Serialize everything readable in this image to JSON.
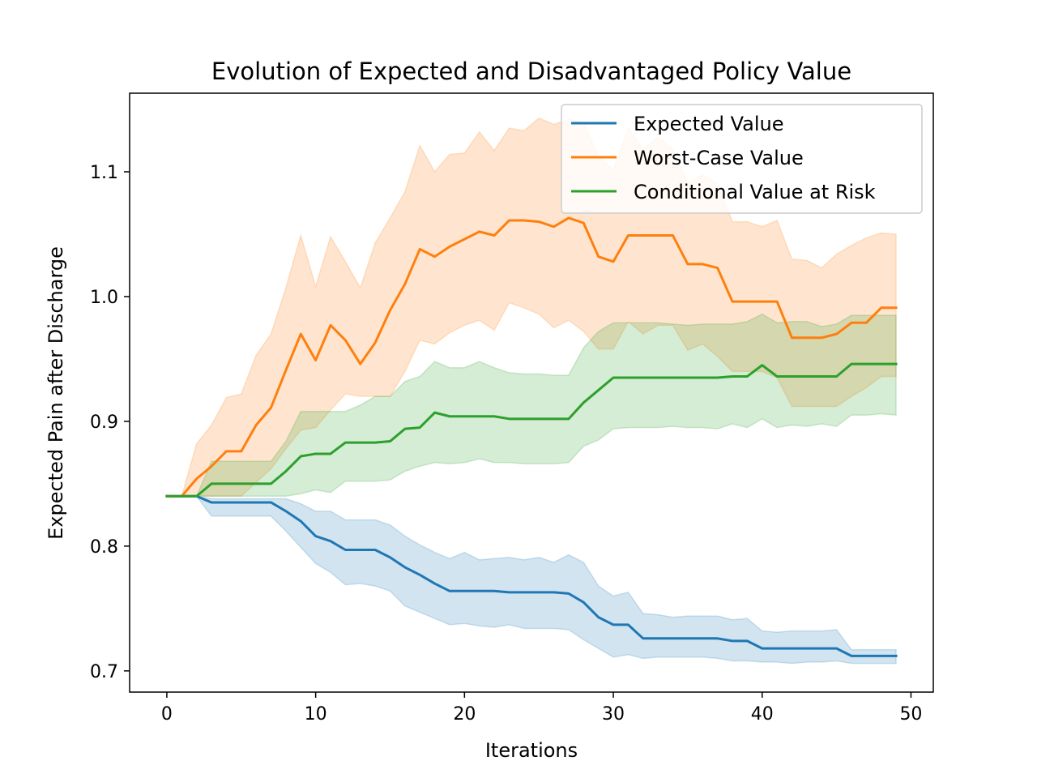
{
  "chart_data": {
    "type": "line",
    "title": "Evolution of Expected and Disadvantaged Policy Value",
    "xlabel": "Iterations",
    "ylabel": "Expected Pain after Discharge",
    "xlim": [
      -2.5,
      51.5
    ],
    "ylim": [
      0.683,
      1.163
    ],
    "xticks": [
      0,
      10,
      20,
      30,
      40,
      50
    ],
    "yticks": [
      0.7,
      0.8,
      0.9,
      1.0,
      1.1
    ],
    "ytick_labels": [
      "0.7",
      "0.8",
      "0.9",
      "1.0",
      "1.1"
    ],
    "grid": false,
    "legend_position": "top-right",
    "x": [
      0,
      1,
      2,
      3,
      4,
      5,
      6,
      7,
      8,
      9,
      10,
      11,
      12,
      13,
      14,
      15,
      16,
      17,
      18,
      19,
      20,
      21,
      22,
      23,
      24,
      25,
      26,
      27,
      28,
      29,
      30,
      31,
      32,
      33,
      34,
      35,
      36,
      37,
      38,
      39,
      40,
      41,
      42,
      43,
      44,
      45,
      46,
      47,
      48,
      49
    ],
    "series": [
      {
        "name": "Expected Value",
        "color": "#1f77b4",
        "fill_color": "#1f77b4",
        "values": [
          0.84,
          0.84,
          0.84,
          0.835,
          0.835,
          0.835,
          0.835,
          0.835,
          0.828,
          0.82,
          0.808,
          0.804,
          0.797,
          0.797,
          0.797,
          0.791,
          0.783,
          0.777,
          0.77,
          0.764,
          0.764,
          0.764,
          0.764,
          0.763,
          0.763,
          0.763,
          0.763,
          0.762,
          0.755,
          0.743,
          0.737,
          0.737,
          0.726,
          0.726,
          0.726,
          0.726,
          0.726,
          0.726,
          0.724,
          0.724,
          0.718,
          0.718,
          0.718,
          0.718,
          0.718,
          0.718,
          0.712,
          0.712,
          0.712,
          0.712
        ],
        "lower": [
          0.84,
          0.84,
          0.84,
          0.824,
          0.824,
          0.824,
          0.824,
          0.824,
          0.812,
          0.799,
          0.786,
          0.779,
          0.769,
          0.77,
          0.768,
          0.764,
          0.752,
          0.747,
          0.742,
          0.737,
          0.738,
          0.736,
          0.735,
          0.737,
          0.734,
          0.734,
          0.734,
          0.733,
          0.725,
          0.718,
          0.711,
          0.713,
          0.71,
          0.711,
          0.711,
          0.711,
          0.711,
          0.71,
          0.708,
          0.708,
          0.707,
          0.707,
          0.706,
          0.707,
          0.707,
          0.708,
          0.706,
          0.706,
          0.706,
          0.706
        ],
        "upper": [
          0.84,
          0.84,
          0.84,
          0.838,
          0.838,
          0.838,
          0.838,
          0.838,
          0.838,
          0.834,
          0.828,
          0.828,
          0.821,
          0.821,
          0.821,
          0.817,
          0.808,
          0.801,
          0.795,
          0.79,
          0.795,
          0.789,
          0.79,
          0.791,
          0.789,
          0.791,
          0.787,
          0.793,
          0.787,
          0.768,
          0.76,
          0.763,
          0.746,
          0.745,
          0.743,
          0.744,
          0.744,
          0.744,
          0.741,
          0.742,
          0.732,
          0.731,
          0.732,
          0.732,
          0.732,
          0.733,
          0.717,
          0.717,
          0.717,
          0.717
        ]
      },
      {
        "name": "Worst-Case Value",
        "color": "#ff7f0e",
        "fill_color": "#ff7f0e",
        "values": [
          0.84,
          0.84,
          0.854,
          0.864,
          0.876,
          0.876,
          0.897,
          0.911,
          0.941,
          0.97,
          0.949,
          0.977,
          0.965,
          0.946,
          0.963,
          0.989,
          1.01,
          1.038,
          1.032,
          1.04,
          1.046,
          1.052,
          1.049,
          1.061,
          1.061,
          1.06,
          1.056,
          1.063,
          1.059,
          1.032,
          1.028,
          1.049,
          1.049,
          1.049,
          1.049,
          1.026,
          1.026,
          1.023,
          0.996,
          0.996,
          0.996,
          0.996,
          0.967,
          0.967,
          0.967,
          0.97,
          0.979,
          0.979,
          0.991,
          0.991
        ],
        "lower": [
          0.84,
          0.84,
          0.84,
          0.84,
          0.84,
          0.84,
          0.851,
          0.862,
          0.878,
          0.893,
          0.895,
          0.909,
          0.922,
          0.92,
          0.92,
          0.92,
          0.94,
          0.965,
          0.962,
          0.971,
          0.977,
          0.981,
          0.973,
          0.995,
          0.991,
          0.986,
          0.975,
          0.981,
          0.972,
          0.958,
          0.958,
          0.98,
          0.97,
          0.977,
          0.977,
          0.957,
          0.962,
          0.952,
          0.94,
          0.94,
          0.94,
          0.935,
          0.912,
          0.912,
          0.912,
          0.912,
          0.92,
          0.927,
          0.936,
          0.936
        ],
        "upper": [
          0.84,
          0.84,
          0.882,
          0.897,
          0.919,
          0.922,
          0.953,
          0.97,
          1.007,
          1.049,
          1.008,
          1.048,
          1.028,
          1.007,
          1.043,
          1.063,
          1.084,
          1.121,
          1.1,
          1.114,
          1.115,
          1.132,
          1.117,
          1.135,
          1.133,
          1.143,
          1.138,
          1.142,
          1.14,
          1.112,
          1.102,
          1.135,
          1.118,
          1.128,
          1.118,
          1.091,
          1.098,
          1.09,
          1.06,
          1.06,
          1.056,
          1.061,
          1.03,
          1.029,
          1.023,
          1.034,
          1.041,
          1.047,
          1.051,
          1.05
        ]
      },
      {
        "name": "Conditional Value at Risk",
        "color": "#2ca02c",
        "fill_color": "#2ca02c",
        "values": [
          0.84,
          0.84,
          0.84,
          0.85,
          0.85,
          0.85,
          0.85,
          0.85,
          0.86,
          0.872,
          0.874,
          0.874,
          0.883,
          0.883,
          0.883,
          0.884,
          0.894,
          0.895,
          0.907,
          0.904,
          0.904,
          0.904,
          0.904,
          0.902,
          0.902,
          0.902,
          0.902,
          0.902,
          0.915,
          0.925,
          0.935,
          0.935,
          0.935,
          0.935,
          0.935,
          0.935,
          0.935,
          0.935,
          0.936,
          0.936,
          0.945,
          0.936,
          0.936,
          0.936,
          0.936,
          0.936,
          0.946,
          0.946,
          0.946,
          0.946
        ],
        "lower": [
          0.84,
          0.84,
          0.84,
          0.84,
          0.84,
          0.84,
          0.84,
          0.84,
          0.84,
          0.842,
          0.845,
          0.843,
          0.852,
          0.852,
          0.852,
          0.853,
          0.86,
          0.864,
          0.867,
          0.866,
          0.867,
          0.87,
          0.867,
          0.867,
          0.866,
          0.866,
          0.866,
          0.867,
          0.88,
          0.885,
          0.894,
          0.895,
          0.895,
          0.895,
          0.896,
          0.895,
          0.895,
          0.894,
          0.898,
          0.895,
          0.902,
          0.895,
          0.897,
          0.896,
          0.898,
          0.896,
          0.905,
          0.905,
          0.906,
          0.905
        ],
        "upper": [
          0.84,
          0.84,
          0.84,
          0.868,
          0.868,
          0.868,
          0.868,
          0.868,
          0.884,
          0.908,
          0.908,
          0.908,
          0.908,
          0.913,
          0.92,
          0.92,
          0.932,
          0.936,
          0.948,
          0.943,
          0.943,
          0.948,
          0.943,
          0.939,
          0.938,
          0.938,
          0.937,
          0.937,
          0.959,
          0.972,
          0.979,
          0.979,
          0.979,
          0.979,
          0.978,
          0.977,
          0.978,
          0.978,
          0.978,
          0.98,
          0.986,
          0.979,
          0.98,
          0.98,
          0.976,
          0.978,
          0.985,
          0.985,
          0.985,
          0.985
        ]
      }
    ]
  }
}
